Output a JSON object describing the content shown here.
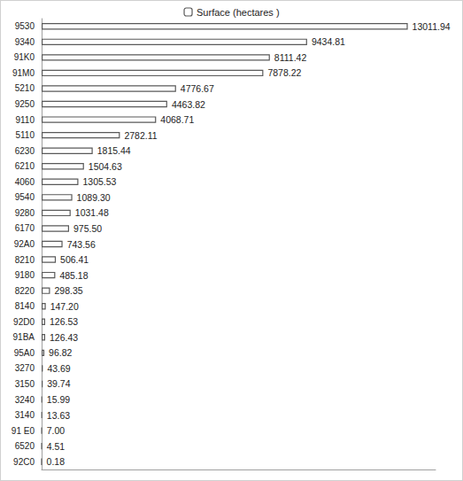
{
  "chart_data": {
    "type": "bar",
    "orientation": "horizontal",
    "categories": [
      "9530",
      "9340",
      "91K0",
      "91M0",
      "5210",
      "9250",
      "9110",
      "5110",
      "6230",
      "6210",
      "4060",
      "9540",
      "9280",
      "6170",
      "92A0",
      "8210",
      "9180",
      "8220",
      "8140",
      "92D0",
      "91BA",
      "95A0",
      "3270",
      "3150",
      "3240",
      "3140",
      "91 E0",
      "6520",
      "92C0"
    ],
    "series": [
      {
        "name": "Surface (hectares )",
        "color": "#595959",
        "values": [
          13011.94,
          9434.81,
          8111.42,
          7878.22,
          4776.67,
          4463.82,
          4068.71,
          2782.11,
          1815.44,
          1504.63,
          1305.53,
          1089.3,
          1031.48,
          975.5,
          743.56,
          506.41,
          485.18,
          298.35,
          147.2,
          126.53,
          126.43,
          96.82,
          43.69,
          39.74,
          15.99,
          13.63,
          7.0,
          4.51,
          0.18
        ],
        "value_labels": [
          "13011.94",
          "9434.81",
          "8111.42",
          "7878.22",
          "4776.67",
          "4463.82",
          "4068.71",
          "2782.11",
          "1815.44",
          "1504.63",
          "1305.53",
          "1089.30",
          "1031.48",
          "975.50",
          "743.56",
          "506.41",
          "485.18",
          "298.35",
          "147.20",
          "126.53",
          "126.43",
          "96.82",
          "43.69",
          "39.74",
          "15.99",
          "13.63",
          "7.00",
          "4.51",
          "0.18"
        ]
      }
    ],
    "xlim": [
      0,
      14000
    ],
    "grid": false,
    "legend": "top",
    "data_labels": true,
    "tick_labels": "y"
  }
}
